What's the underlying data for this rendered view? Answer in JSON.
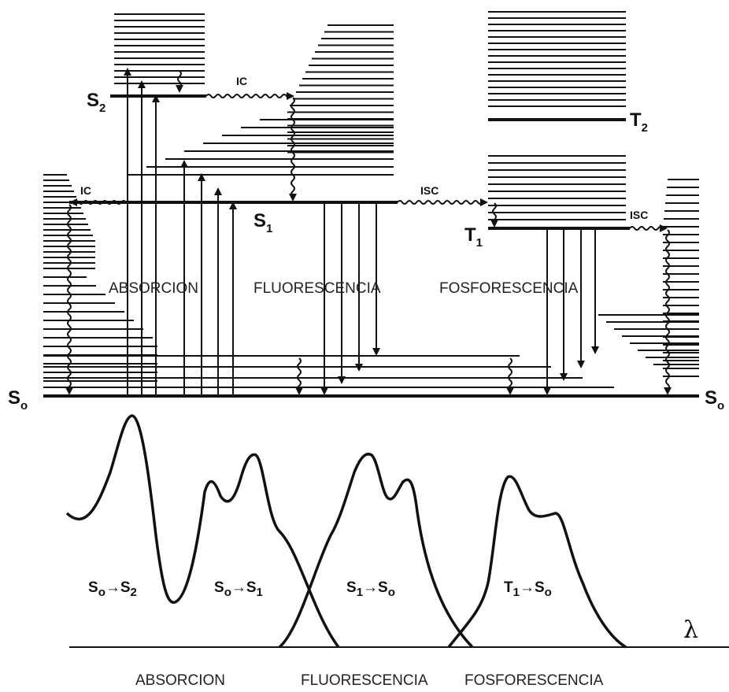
{
  "states": {
    "s2": {
      "main": "S",
      "sub": "2"
    },
    "s1": {
      "main": "S",
      "sub": "1"
    },
    "s0_left": {
      "main": "S",
      "sub": "o"
    },
    "s0_right": {
      "main": "S",
      "sub": "o"
    },
    "t1": {
      "main": "T",
      "sub": "1"
    },
    "t2": {
      "main": "T",
      "sub": "2"
    }
  },
  "process_labels": {
    "ic_upper": "IC",
    "ic_left": "IC",
    "isc_middle": "ISC",
    "isc_right": "ISC"
  },
  "section_labels": {
    "absorcion": "ABSORCION",
    "fluorescencia": "FLUORESCENCIA",
    "fosforescencia": "FOSFORESCENCIA"
  },
  "spectrum_labels": {
    "absorcion": "ABSORCION",
    "fluorescencia": "FLUORESCENCIA",
    "fosforescencia": "FOSFORESCENCIA",
    "lambda": "λ"
  },
  "spectrum_bands": {
    "s0_s2": {
      "from": "S",
      "from_sub": "o",
      "to": "S",
      "to_sub": "2"
    },
    "s0_s1": {
      "from": "S",
      "from_sub": "o",
      "to": "S",
      "to_sub": "1"
    },
    "s1_s0": {
      "from": "S",
      "from_sub": "1",
      "to": "S",
      "to_sub": "o"
    },
    "t1_s0": {
      "from": "T",
      "from_sub": "1",
      "to": "S",
      "to_sub": "o"
    }
  },
  "colors": {
    "ink": "#111111",
    "background": "#ffffff"
  }
}
